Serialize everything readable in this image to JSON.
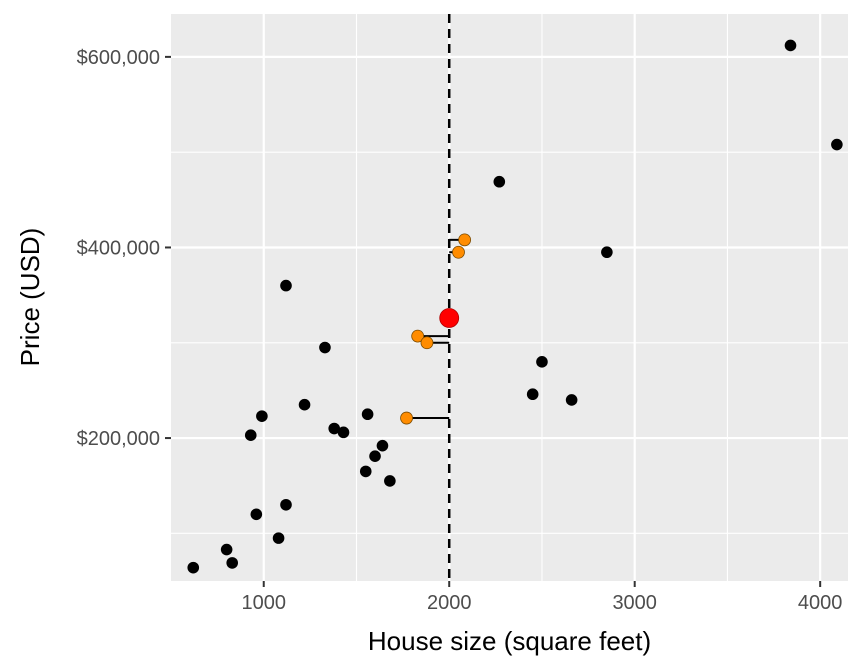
{
  "chart_data": {
    "type": "scatter",
    "title": "",
    "xlabel": "House size (square feet)",
    "ylabel": "Price (USD)",
    "xlim": [
      500,
      4150
    ],
    "ylim": [
      50000,
      645000
    ],
    "x_ticks": [
      1000,
      2000,
      3000,
      4000
    ],
    "x_tick_labels": [
      "1000",
      "2000",
      "3000",
      "4000"
    ],
    "x_minor": [
      1500,
      2500,
      3500
    ],
    "y_ticks": [
      200000,
      400000,
      600000
    ],
    "y_tick_labels": [
      "$200,000",
      "$400,000",
      "$600,000"
    ],
    "y_minor": [
      100000,
      300000,
      500000
    ],
    "grid": true,
    "colors": {
      "panel": "#ebebeb",
      "points": "#000000",
      "neighbors": "#ff8c00",
      "query": "#ff0000",
      "vline": "#000000"
    },
    "vline_x": 2000,
    "query_point": {
      "x": 2000,
      "y": 326000
    },
    "neighbors": [
      {
        "x": 2083,
        "y": 408000
      },
      {
        "x": 2050,
        "y": 395000
      },
      {
        "x": 1830,
        "y": 307000
      },
      {
        "x": 1880,
        "y": 300000
      },
      {
        "x": 1770,
        "y": 221000
      }
    ],
    "points": [
      {
        "x": 3840,
        "y": 612000
      },
      {
        "x": 4090,
        "y": 508000
      },
      {
        "x": 2270,
        "y": 469000
      },
      {
        "x": 2850,
        "y": 395000
      },
      {
        "x": 1120,
        "y": 360000
      },
      {
        "x": 1330,
        "y": 295000
      },
      {
        "x": 2500,
        "y": 280000
      },
      {
        "x": 2450,
        "y": 246000
      },
      {
        "x": 2660,
        "y": 240000
      },
      {
        "x": 1220,
        "y": 235000
      },
      {
        "x": 990,
        "y": 223000
      },
      {
        "x": 1560,
        "y": 225000
      },
      {
        "x": 930,
        "y": 203000
      },
      {
        "x": 1380,
        "y": 210000
      },
      {
        "x": 1430,
        "y": 206000
      },
      {
        "x": 1640,
        "y": 192000
      },
      {
        "x": 1600,
        "y": 181000
      },
      {
        "x": 1550,
        "y": 165000
      },
      {
        "x": 1680,
        "y": 155000
      },
      {
        "x": 1120,
        "y": 130000
      },
      {
        "x": 960,
        "y": 120000
      },
      {
        "x": 1080,
        "y": 95000
      },
      {
        "x": 800,
        "y": 83000
      },
      {
        "x": 830,
        "y": 69000
      },
      {
        "x": 620,
        "y": 64000
      }
    ]
  }
}
